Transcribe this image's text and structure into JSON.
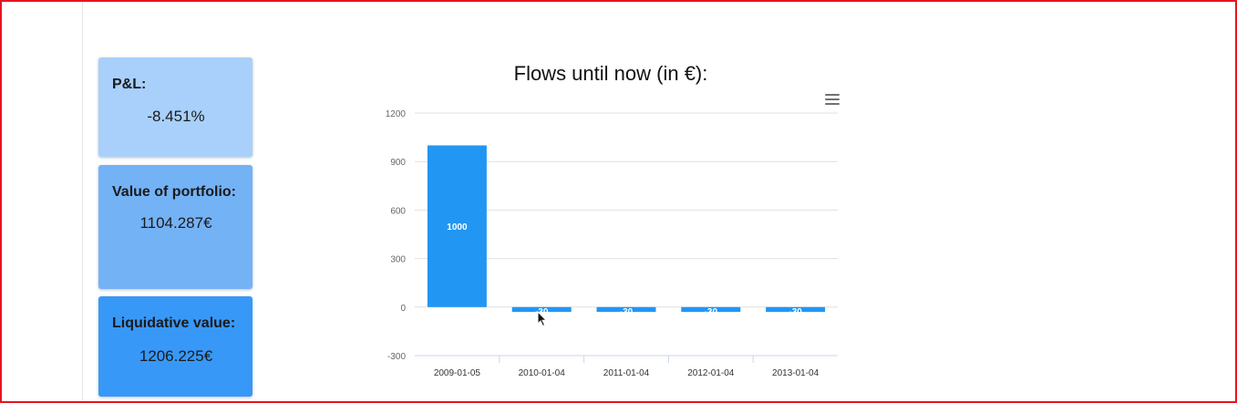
{
  "cards": {
    "pnl": {
      "label": "P&L:",
      "value": "-8.451%"
    },
    "portfolio": {
      "label": "Value of portfolio:",
      "value": "1104.287€"
    },
    "liquidative": {
      "label": "Liquidative value:",
      "value": "1206.225€"
    }
  },
  "colors": {
    "card_light": "#a8d0fb",
    "card_mid": "#74b2f6",
    "card_dark": "#3898f7",
    "bar": "#2196f3",
    "frame": "#e8141e"
  },
  "icons": {
    "menu": "hamburger-menu-icon",
    "pointer": "mouse-pointer-icon"
  },
  "chart_data": {
    "type": "bar",
    "title": "Flows until now (in €):",
    "categories": [
      "2009-01-05",
      "2010-01-04",
      "2011-01-04",
      "2012-01-04",
      "2013-01-04"
    ],
    "values": [
      1000,
      -30,
      -30,
      -30,
      -30
    ],
    "data_labels": [
      "1000",
      "-30",
      "-30",
      "-30",
      "-30"
    ],
    "yticks": [
      -300,
      0,
      300,
      600,
      900,
      1200
    ],
    "ylim": [
      -300,
      1200
    ],
    "xlabel": "",
    "ylabel": "",
    "grid": true,
    "legend": "none"
  }
}
